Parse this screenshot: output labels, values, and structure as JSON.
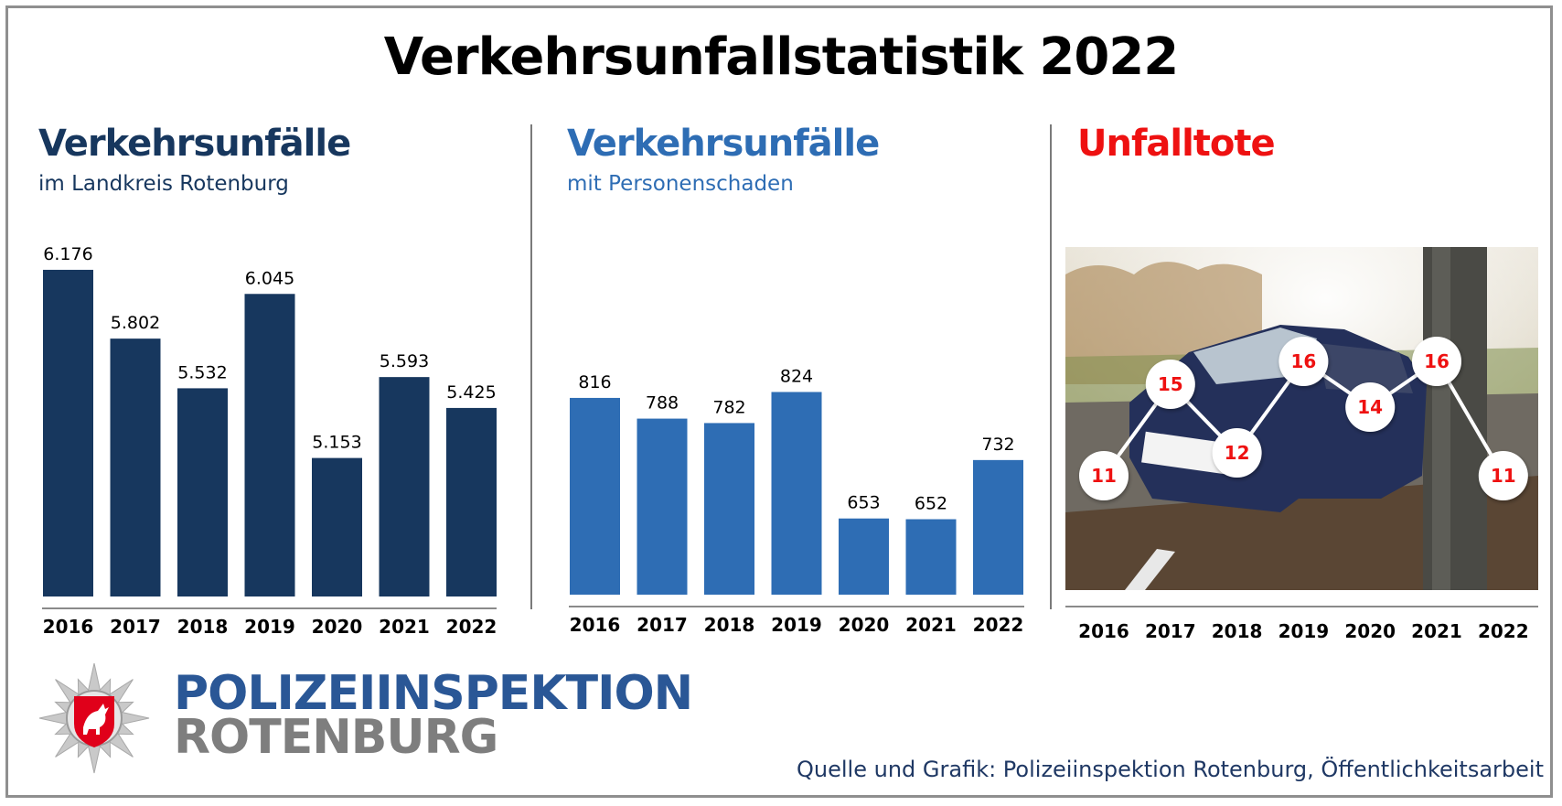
{
  "title": "Verkehrsunfallstatistik 2022",
  "colors": {
    "dark_blue": "#17375e",
    "mid_blue": "#2e6db4",
    "red": "#ee1111",
    "axis": "#8a8a8a"
  },
  "chart_data": [
    {
      "type": "bar",
      "title": "Verkehrsunfälle",
      "subtitle": "im Landkreis Rotenburg",
      "categories": [
        "2016",
        "2017",
        "2018",
        "2019",
        "2020",
        "2021",
        "2022"
      ],
      "values": [
        6176,
        5802,
        5532,
        6045,
        5153,
        5593,
        5425
      ],
      "labels": [
        "6.176",
        "5.802",
        "5.532",
        "6.045",
        "5.153",
        "5.593",
        "5.425"
      ],
      "ylim": [
        4400,
        6300
      ],
      "color": "#17375e"
    },
    {
      "type": "bar",
      "title": "Verkehrsunfälle",
      "subtitle": "mit Personenschaden",
      "categories": [
        "2016",
        "2017",
        "2018",
        "2019",
        "2020",
        "2021",
        "2022"
      ],
      "values": [
        816,
        788,
        782,
        824,
        653,
        652,
        732
      ],
      "labels": [
        "816",
        "788",
        "782",
        "824",
        "653",
        "652",
        "732"
      ],
      "ylim": [
        550,
        1020
      ],
      "color": "#2e6db4"
    },
    {
      "type": "line",
      "title": "Unfalltote",
      "categories": [
        "2016",
        "2017",
        "2018",
        "2019",
        "2020",
        "2021",
        "2022"
      ],
      "values": [
        11,
        15,
        12,
        16,
        14,
        16,
        11
      ],
      "labels": [
        "11",
        "15",
        "12",
        "16",
        "14",
        "16",
        "11"
      ],
      "ylim": [
        6,
        21
      ],
      "color": "#ee1111",
      "background": "photo-of-crashed-car-at-tree"
    }
  ],
  "logo": {
    "line1": "POLIZEIINSPEKTION",
    "line2": "ROTENBURG",
    "icon": "police-star-badge-with-horse"
  },
  "source": "Quelle und Grafik: Polizeiinspektion Rotenburg, Öffentlichkeitsarbeit"
}
